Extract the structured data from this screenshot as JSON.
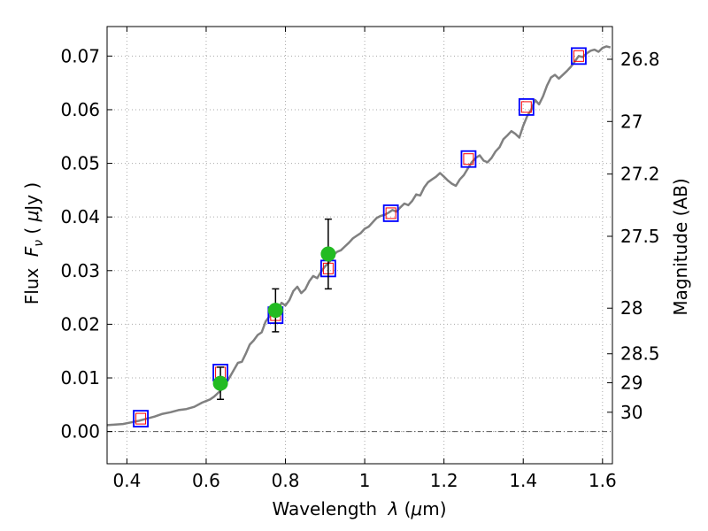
{
  "chart_data": {
    "type": "scatter",
    "xlabel": "Wavelength",
    "xlabel_symbol": "λ",
    "xlabel_unit_open": " (",
    "xlabel_unit_mu": "μ",
    "xlabel_unit_rest": "m)",
    "ylabel": "Flux",
    "ylabel_symbol": "F",
    "ylabel_subscript": "ν",
    "ylabel_unit_open": " ( ",
    "ylabel_unit_mu": "μ",
    "ylabel_unit_rest": "Jy )",
    "y2label": "Magnitude (AB)",
    "xlim": [
      0.35,
      1.625
    ],
    "ylim": [
      -0.006,
      0.0755
    ],
    "grid": true,
    "x_ticks": [
      {
        "value": 0.4,
        "label": "0.4"
      },
      {
        "value": 0.6,
        "label": "0.6"
      },
      {
        "value": 0.8,
        "label": "0.8"
      },
      {
        "value": 1.0,
        "label": "1"
      },
      {
        "value": 1.2,
        "label": "1.2"
      },
      {
        "value": 1.4,
        "label": "1.4"
      },
      {
        "value": 1.6,
        "label": "1.6"
      }
    ],
    "y_ticks": [
      {
        "value": 0.0,
        "label": "0.00"
      },
      {
        "value": 0.01,
        "label": "0.01"
      },
      {
        "value": 0.02,
        "label": "0.02"
      },
      {
        "value": 0.03,
        "label": "0.03"
      },
      {
        "value": 0.04,
        "label": "0.04"
      },
      {
        "value": 0.05,
        "label": "0.05"
      },
      {
        "value": 0.06,
        "label": "0.06"
      },
      {
        "value": 0.07,
        "label": "0.07"
      }
    ],
    "y2_ticks": [
      {
        "flux": 0.0694,
        "label": "26.8"
      },
      {
        "flux": 0.0578,
        "label": "27"
      },
      {
        "flux": 0.048,
        "label": "27.2"
      },
      {
        "flux": 0.0364,
        "label": "27.5"
      },
      {
        "flux": 0.023,
        "label": "28"
      },
      {
        "flux": 0.0145,
        "label": "28.5"
      },
      {
        "flux": 0.0091,
        "label": "29"
      },
      {
        "flux": 0.0036,
        "label": "30"
      }
    ],
    "zero_line_y": 0.0,
    "colors": {
      "spectrum": "#808080",
      "model_box": "#0000ff",
      "model_inner": "#ff0000",
      "observed": "#22bb22",
      "errorbar": "#000000",
      "grid": "#aaaaaa"
    },
    "series": [
      {
        "kind": "spectrum",
        "x": [
          0.35,
          0.37,
          0.39,
          0.41,
          0.43,
          0.45,
          0.47,
          0.49,
          0.51,
          0.53,
          0.55,
          0.57,
          0.59,
          0.61,
          0.62,
          0.63,
          0.64,
          0.65,
          0.66,
          0.67,
          0.68,
          0.69,
          0.7,
          0.71,
          0.72,
          0.73,
          0.74,
          0.75,
          0.76,
          0.77,
          0.78,
          0.79,
          0.8,
          0.81,
          0.82,
          0.83,
          0.84,
          0.85,
          0.86,
          0.87,
          0.88,
          0.89,
          0.9,
          0.91,
          0.92,
          0.93,
          0.94,
          0.95,
          0.96,
          0.97,
          0.98,
          0.99,
          1.0,
          1.01,
          1.02,
          1.03,
          1.04,
          1.05,
          1.06,
          1.07,
          1.08,
          1.09,
          1.1,
          1.11,
          1.12,
          1.13,
          1.14,
          1.15,
          1.16,
          1.17,
          1.18,
          1.19,
          1.2,
          1.21,
          1.22,
          1.23,
          1.24,
          1.25,
          1.26,
          1.27,
          1.28,
          1.29,
          1.3,
          1.31,
          1.32,
          1.33,
          1.34,
          1.35,
          1.36,
          1.37,
          1.38,
          1.39,
          1.4,
          1.41,
          1.42,
          1.43,
          1.44,
          1.45,
          1.46,
          1.47,
          1.48,
          1.49,
          1.5,
          1.51,
          1.52,
          1.53,
          1.54,
          1.55,
          1.56,
          1.57,
          1.58,
          1.59,
          1.6,
          1.61,
          1.62
        ],
        "y": [
          0.0012,
          0.0013,
          0.0014,
          0.0017,
          0.002,
          0.0024,
          0.0028,
          0.0033,
          0.0036,
          0.004,
          0.0042,
          0.0046,
          0.0054,
          0.006,
          0.0065,
          0.0072,
          0.0079,
          0.009,
          0.0102,
          0.0115,
          0.0128,
          0.013,
          0.0145,
          0.0162,
          0.017,
          0.018,
          0.0185,
          0.0205,
          0.0215,
          0.0222,
          0.0225,
          0.024,
          0.0235,
          0.0245,
          0.0262,
          0.027,
          0.0258,
          0.0265,
          0.028,
          0.029,
          0.0286,
          0.0298,
          0.0308,
          0.0315,
          0.0328,
          0.0335,
          0.0338,
          0.0345,
          0.0352,
          0.036,
          0.0365,
          0.037,
          0.0378,
          0.0382,
          0.039,
          0.0398,
          0.0402,
          0.0404,
          0.0408,
          0.0413,
          0.041,
          0.0418,
          0.0425,
          0.0422,
          0.043,
          0.0442,
          0.044,
          0.0455,
          0.0465,
          0.047,
          0.0475,
          0.0482,
          0.0475,
          0.0468,
          0.0462,
          0.0458,
          0.047,
          0.0478,
          0.049,
          0.0502,
          0.051,
          0.0515,
          0.0505,
          0.0502,
          0.051,
          0.0522,
          0.053,
          0.0545,
          0.0552,
          0.056,
          0.0555,
          0.0548,
          0.057,
          0.0588,
          0.06,
          0.0618,
          0.061,
          0.0625,
          0.0645,
          0.066,
          0.0665,
          0.0658,
          0.0665,
          0.0672,
          0.068,
          0.069,
          0.07,
          0.0698,
          0.0705,
          0.071,
          0.0712,
          0.0708,
          0.0715,
          0.0718,
          0.0716
        ]
      },
      {
        "kind": "model",
        "x": [
          0.435,
          0.636,
          0.775,
          0.908,
          1.066,
          1.262,
          1.408,
          1.54
        ],
        "y": [
          0.0024,
          0.011,
          0.0217,
          0.0304,
          0.0407,
          0.0508,
          0.0605,
          0.07
        ]
      },
      {
        "kind": "observed",
        "x": [
          0.636,
          0.775,
          0.908
        ],
        "y": [
          0.009,
          0.0226,
          0.0331
        ],
        "yerr": [
          0.003,
          0.004,
          0.0065
        ]
      }
    ]
  }
}
